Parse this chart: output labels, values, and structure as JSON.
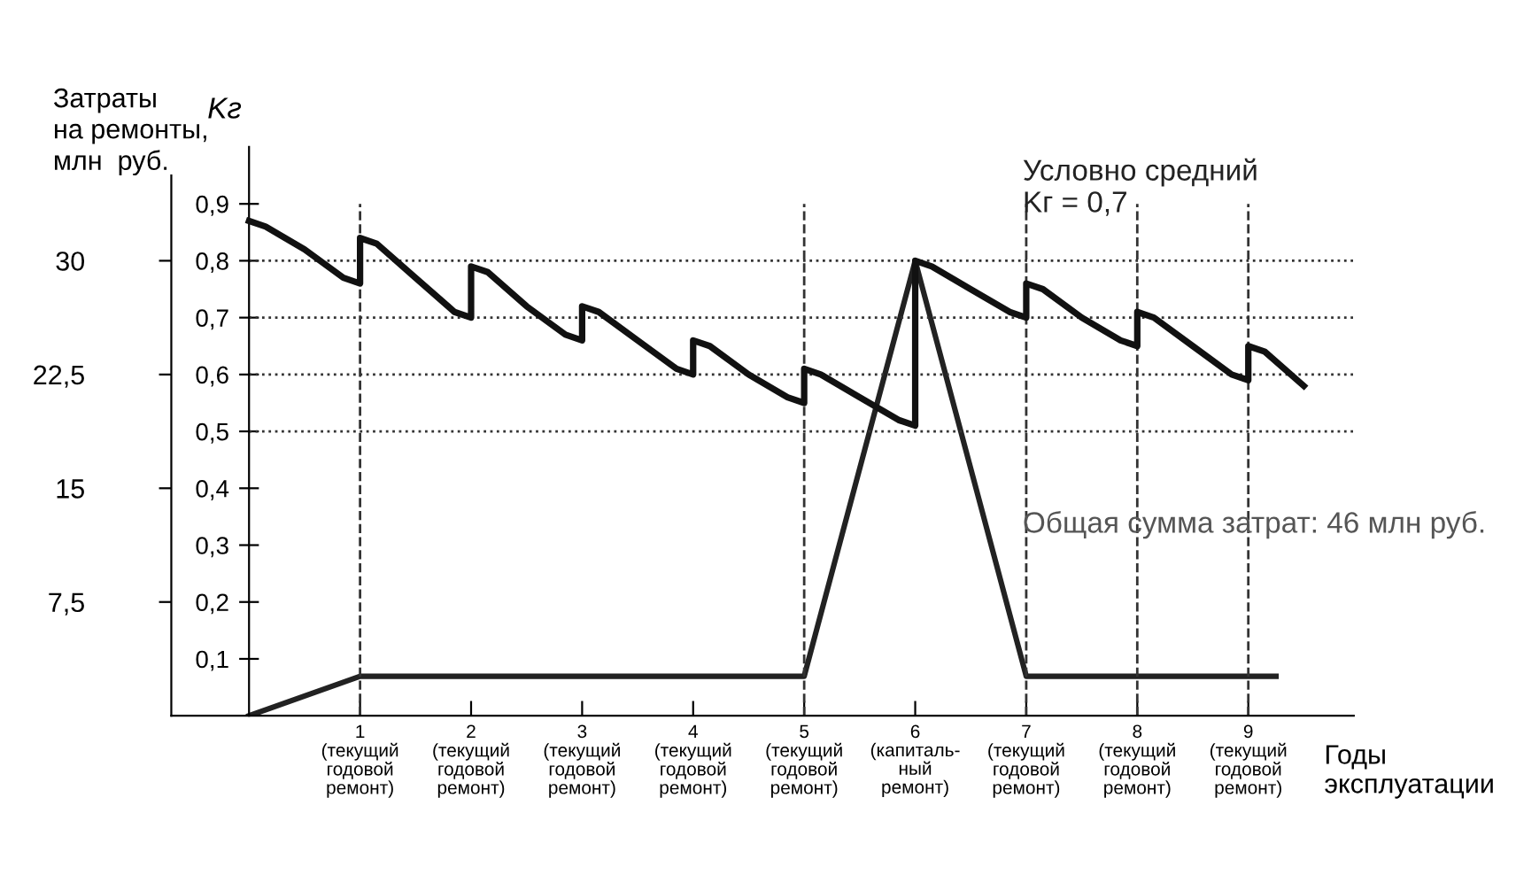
{
  "chart_data": {
    "type": "line",
    "xlabel": "Годы\nэксплуатации",
    "ylabel": "Kг",
    "y2label": "Затраты\nна ремонты,\nмлн  руб.",
    "annotations": [
      "Условно средний\nKг = 0,7",
      "Общая сумма затрат: 46 млн руб."
    ],
    "xlim": [
      -0.7,
      9.95
    ],
    "xticks": [
      {
        "value": 1,
        "label": "1\n(текущий\nгодовой\nремонт)"
      },
      {
        "value": 2,
        "label": "2\n(текущий\nгодовой\nремонт)"
      },
      {
        "value": 3,
        "label": "3\n(текущий\nгодовой\nремонт)"
      },
      {
        "value": 4,
        "label": "4\n(текущий\nгодовой\nремонт)"
      },
      {
        "value": 5,
        "label": "5\n(текущий\nгодовой\nремонт)"
      },
      {
        "value": 6,
        "label": "6\n(капиталь-\nный\nремонт)"
      },
      {
        "value": 7,
        "label": "7\n(текущий\nгодовой\nремонт)"
      },
      {
        "value": 8,
        "label": "8\n(текущий\nгодовой\nремонт)"
      },
      {
        "value": 9,
        "label": "9\n(текущий\nгодовой\nремонт)"
      }
    ],
    "ylim": [
      0,
      1
    ],
    "yticks": [
      {
        "value": 0.1,
        "label": "0,1"
      },
      {
        "value": 0.2,
        "label": "0,2"
      },
      {
        "value": 0.3,
        "label": "0,3"
      },
      {
        "value": 0.4,
        "label": "0,4"
      },
      {
        "value": 0.5,
        "label": "0,5"
      },
      {
        "value": 0.6,
        "label": "0,6"
      },
      {
        "value": 0.7,
        "label": "0,7"
      },
      {
        "value": 0.8,
        "label": "0,8"
      },
      {
        "value": 0.9,
        "label": "0,9"
      }
    ],
    "y2lim": [
      0,
      37.5
    ],
    "y2ticks": [
      {
        "value": 7.5,
        "label": "7,5"
      },
      15,
      {
        "value": 22.5,
        "label": "22,5"
      },
      30
    ],
    "series": [
      {
        "color": "#111111",
        "x": [
          0,
          0.15,
          0.5,
          0.85,
          1,
          1,
          1.15,
          1.5,
          1.85,
          2,
          2,
          2.15,
          2.5,
          2.85,
          3,
          3,
          3.15,
          3.5,
          3.85,
          4,
          4,
          4.15,
          4.5,
          4.85,
          5,
          5,
          5.15,
          5.5,
          5.85,
          6,
          6,
          6.15,
          6.5,
          6.85,
          7,
          7,
          7.15,
          7.5,
          7.85,
          8,
          8,
          8.15,
          8.5,
          8.85,
          9,
          9,
          9.15,
          9.5
        ],
        "values": [
          0.87,
          0.86,
          0.82,
          0.77,
          0.76,
          0.84,
          0.83,
          0.77,
          0.71,
          0.7,
          0.79,
          0.78,
          0.72,
          0.67,
          0.66,
          0.72,
          0.71,
          0.66,
          0.61,
          0.6,
          0.66,
          0.65,
          0.6,
          0.56,
          0.55,
          0.61,
          0.6,
          0.56,
          0.52,
          0.51,
          0.8,
          0.79,
          0.75,
          0.71,
          0.7,
          0.76,
          0.75,
          0.7,
          0.66,
          0.65,
          0.71,
          0.7,
          0.65,
          0.6,
          0.59,
          0.65,
          0.64,
          0.58
        ]
      },
      {
        "color": "#222222",
        "axis": "y2",
        "x": [
          0,
          1,
          5,
          6,
          7,
          9.25
        ],
        "values": [
          0,
          2.6,
          2.6,
          30,
          2.6,
          2.6
        ]
      }
    ],
    "ref_lines": [
      {
        "axis": "y",
        "value": 0.8,
        "line_style": "dotted",
        "color": "#333333"
      },
      {
        "axis": "y",
        "value": 0.7,
        "line_style": "dotted",
        "color": "#333333"
      },
      {
        "axis": "y",
        "value": 0.6,
        "line_style": "dotted",
        "color": "#333333"
      },
      {
        "axis": "y",
        "value": 0.5,
        "line_style": "dotted",
        "color": "#333333"
      },
      {
        "axis": "x",
        "value": 1,
        "line_style": "dashed",
        "color": "#333333"
      },
      {
        "axis": "x",
        "value": 5,
        "line_style": "dashed",
        "color": "#333333"
      },
      {
        "axis": "x",
        "value": 7,
        "line_style": "dashed",
        "color": "#333333"
      },
      {
        "axis": "x",
        "value": 8,
        "line_style": "dashed",
        "color": "#333333"
      },
      {
        "axis": "x",
        "value": 9,
        "line_style": "dashed",
        "color": "#333333"
      }
    ],
    "marker": "none",
    "line_style": "solid",
    "grid": false,
    "legend": false
  }
}
